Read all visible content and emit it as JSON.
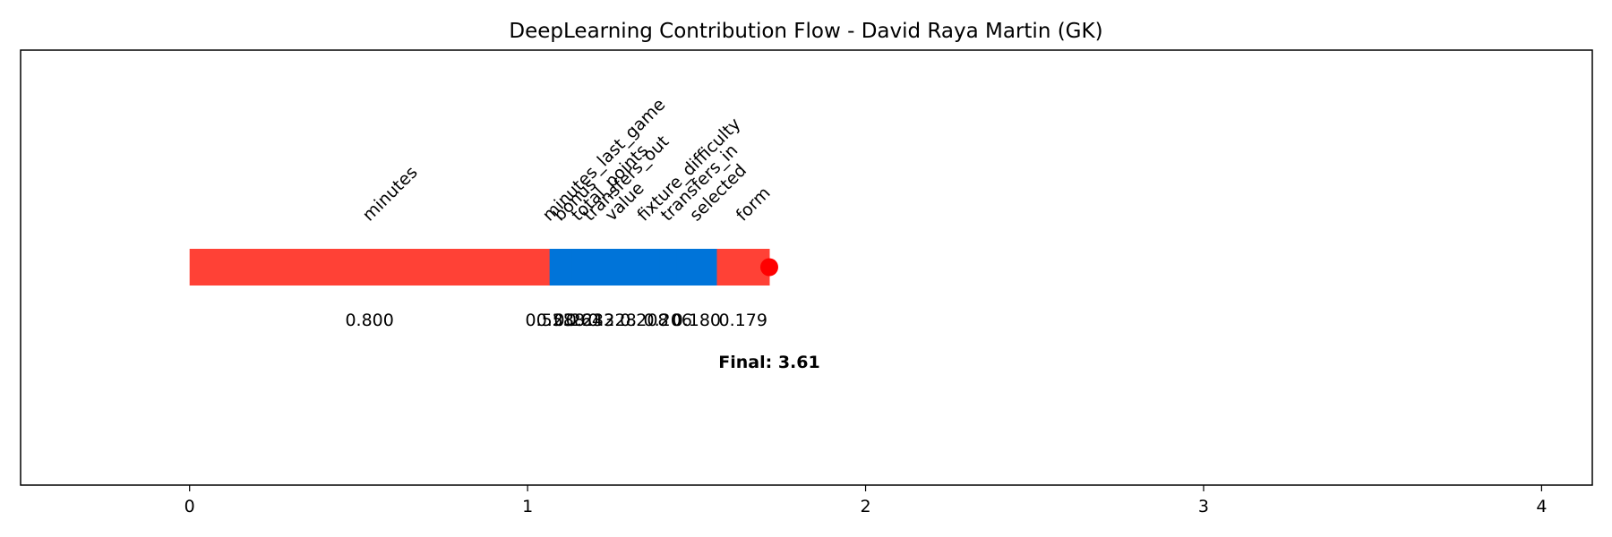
{
  "chart_data": {
    "type": "bar",
    "title": "DeepLearning Contribution Flow - David Raya Martin (GK)",
    "xlabel": "",
    "ylabel": "",
    "xlim": [
      -0.5,
      4.15
    ],
    "xticks": [
      "0",
      "1",
      "2",
      "3",
      "4"
    ],
    "grid": false,
    "colors": {
      "positive": "#ff4136",
      "negative": "#0074d9",
      "marker": "#ff0000"
    },
    "segments": [
      {
        "feature": "minutes",
        "value": 0.8,
        "label": "0.800",
        "start": 0.0,
        "end": 1.065,
        "sign": "positive"
      },
      {
        "feature": "minutes_last_game",
        "value": 0.553,
        "label": "0.553",
        "start": 1.065,
        "end": 1.065,
        "sign": "negative"
      },
      {
        "feature": "bonus",
        "value": 0.288,
        "label": "0.288",
        "start": 1.065,
        "end": 1.13,
        "sign": "negative"
      },
      {
        "feature": "total_points",
        "value": 0.264,
        "label": "0.264",
        "start": 1.13,
        "end": 1.17,
        "sign": "negative"
      },
      {
        "feature": "transfers_out",
        "value": 0.233,
        "label": "0.233",
        "start": 1.17,
        "end": 1.2,
        "sign": "negative"
      },
      {
        "feature": "value",
        "value": 0.228,
        "label": "0.228",
        "start": 1.2,
        "end": 1.3,
        "sign": "negative"
      },
      {
        "feature": "fixture_difficulty",
        "value": 0.208,
        "label": "0.208",
        "start": 1.3,
        "end": 1.39,
        "sign": "negative"
      },
      {
        "feature": "transfers_in",
        "value": 0.206,
        "label": "0.206",
        "start": 1.39,
        "end": 1.44,
        "sign": "negative"
      },
      {
        "feature": "selected",
        "value": 0.18,
        "label": "0.180",
        "start": 1.44,
        "end": 1.56,
        "sign": "negative"
      },
      {
        "feature": "form",
        "value": 0.179,
        "label": "0.179",
        "start": 1.56,
        "end": 1.715,
        "sign": "positive"
      }
    ],
    "final": {
      "value": 3.61,
      "label": "Final: 3.61",
      "x": 1.715
    }
  }
}
